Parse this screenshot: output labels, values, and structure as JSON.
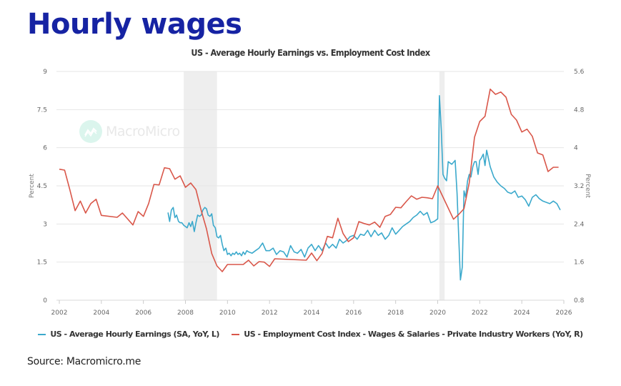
{
  "header": {
    "title": "Hourly wages"
  },
  "watermark": "MacroMicro",
  "source": "Source: Macromicro.me",
  "chart_data": {
    "type": "line",
    "title": "US - Average Hourly Earnings vs. Employment Cost Index",
    "xlabel": "",
    "ylabel_left": "Percent",
    "ylabel_right": "Percent",
    "xlim": [
      2002,
      2026
    ],
    "ylim_left": [
      0,
      9
    ],
    "ylim_right": [
      0.8,
      5.6
    ],
    "x_ticks": [
      "2002",
      "2004",
      "2006",
      "2008",
      "2010",
      "2012",
      "2014",
      "2016",
      "2018",
      "2020",
      "2022",
      "2024",
      "2026"
    ],
    "y_ticks_left": [
      "0",
      "1.5",
      "3",
      "4.5",
      "6",
      "7.5",
      "9"
    ],
    "y_ticks_right": [
      "0.8",
      "1.6",
      "2.4",
      "3.2",
      "4",
      "4.8",
      "5.6"
    ],
    "grid": true,
    "legend_position": "bottom",
    "recession_shading": [
      {
        "start": 2007.92,
        "end": 2009.5
      },
      {
        "start": 2020.08,
        "end": 2020.33
      }
    ],
    "series": [
      {
        "name": "US - Average Hourly Earnings (SA, YoY, L)",
        "axis": "left",
        "color": "#3ba9cc",
        "x": [
          2007.17,
          2007.25,
          2007.33,
          2007.42,
          2007.5,
          2007.58,
          2007.67,
          2007.75,
          2007.83,
          2007.92,
          2008.0,
          2008.08,
          2008.17,
          2008.25,
          2008.33,
          2008.42,
          2008.5,
          2008.58,
          2008.67,
          2008.75,
          2008.83,
          2008.92,
          2009.0,
          2009.08,
          2009.17,
          2009.25,
          2009.33,
          2009.42,
          2009.5,
          2009.58,
          2009.67,
          2009.75,
          2009.83,
          2009.92,
          2010.0,
          2010.08,
          2010.17,
          2010.25,
          2010.33,
          2010.42,
          2010.5,
          2010.58,
          2010.67,
          2010.75,
          2010.83,
          2010.92,
          2011.0,
          2011.17,
          2011.33,
          2011.5,
          2011.67,
          2011.83,
          2012.0,
          2012.17,
          2012.33,
          2012.5,
          2012.67,
          2012.83,
          2013.0,
          2013.17,
          2013.33,
          2013.5,
          2013.67,
          2013.83,
          2014.0,
          2014.17,
          2014.33,
          2014.5,
          2014.67,
          2014.83,
          2015.0,
          2015.17,
          2015.33,
          2015.5,
          2015.67,
          2015.83,
          2016.0,
          2016.17,
          2016.33,
          2016.5,
          2016.67,
          2016.83,
          2017.0,
          2017.17,
          2017.33,
          2017.5,
          2017.67,
          2017.83,
          2018.0,
          2018.17,
          2018.33,
          2018.5,
          2018.67,
          2018.83,
          2019.0,
          2019.17,
          2019.33,
          2019.5,
          2019.67,
          2019.83,
          2020.0,
          2020.08,
          2020.17,
          2020.25,
          2020.33,
          2020.42,
          2020.5,
          2020.67,
          2020.83,
          2020.92,
          2021.0,
          2021.08,
          2021.17,
          2021.25,
          2021.33,
          2021.42,
          2021.5,
          2021.58,
          2021.67,
          2021.75,
          2021.83,
          2021.92,
          2022.0,
          2022.08,
          2022.17,
          2022.25,
          2022.33,
          2022.42,
          2022.5,
          2022.67,
          2022.83,
          2023.0,
          2023.17,
          2023.33,
          2023.5,
          2023.67,
          2023.83,
          2024.0,
          2024.17,
          2024.33,
          2024.5,
          2024.67,
          2024.83,
          2025.0,
          2025.17,
          2025.33,
          2025.5,
          2025.67,
          2025.83
        ],
        "y": [
          3.45,
          3.1,
          3.55,
          3.65,
          3.25,
          3.35,
          3.1,
          3.05,
          3.05,
          2.95,
          2.9,
          2.85,
          3.05,
          2.9,
          3.1,
          2.7,
          3.05,
          3.35,
          3.3,
          3.35,
          3.55,
          3.65,
          3.6,
          3.35,
          3.3,
          3.4,
          2.95,
          2.85,
          2.5,
          2.45,
          2.55,
          2.2,
          1.95,
          2.05,
          1.8,
          1.85,
          1.75,
          1.85,
          1.8,
          1.9,
          1.8,
          1.85,
          1.75,
          1.9,
          1.8,
          1.95,
          1.9,
          1.85,
          1.95,
          2.05,
          2.25,
          1.95,
          1.95,
          2.05,
          1.8,
          1.95,
          1.9,
          1.7,
          2.15,
          1.9,
          1.85,
          2.0,
          1.7,
          2.05,
          2.2,
          1.95,
          2.15,
          1.95,
          2.25,
          2.05,
          2.2,
          2.05,
          2.4,
          2.25,
          2.35,
          2.5,
          2.55,
          2.4,
          2.6,
          2.55,
          2.75,
          2.5,
          2.75,
          2.55,
          2.65,
          2.4,
          2.55,
          2.85,
          2.6,
          2.75,
          2.9,
          3.0,
          3.1,
          3.25,
          3.35,
          3.5,
          3.35,
          3.45,
          3.05,
          3.1,
          3.2,
          8.05,
          6.7,
          4.95,
          4.8,
          4.7,
          5.45,
          5.35,
          5.5,
          4.2,
          2.5,
          0.8,
          1.3,
          4.3,
          4.05,
          4.7,
          4.95,
          4.85,
          5.25,
          5.45,
          5.45,
          4.95,
          5.5,
          5.6,
          5.75,
          5.3,
          5.9,
          5.55,
          5.25,
          4.85,
          4.65,
          4.5,
          4.4,
          4.25,
          4.2,
          4.3,
          4.05,
          4.1,
          3.95,
          3.7,
          4.05,
          4.15,
          4.0,
          3.9,
          3.85,
          3.8,
          3.9,
          3.8,
          3.55
        ]
      },
      {
        "name": "US - Employment Cost Index - Wages & Salaries - Private Industry Workers (YoY, R)",
        "axis": "right",
        "color": "#d9574a",
        "x": [
          2002.0,
          2002.25,
          2002.5,
          2002.75,
          2003.0,
          2003.25,
          2003.5,
          2003.75,
          2004.0,
          2004.75,
          2005.0,
          2005.5,
          2005.75,
          2006.0,
          2006.25,
          2006.5,
          2006.75,
          2007.0,
          2007.25,
          2007.5,
          2007.75,
          2008.0,
          2008.25,
          2008.5,
          2008.75,
          2009.0,
          2009.25,
          2009.5,
          2009.75,
          2010.0,
          2010.75,
          2011.0,
          2011.25,
          2011.5,
          2011.75,
          2012.0,
          2012.25,
          2013.75,
          2014.0,
          2014.25,
          2014.5,
          2014.75,
          2015.0,
          2015.25,
          2015.5,
          2015.75,
          2016.0,
          2016.25,
          2016.5,
          2016.75,
          2017.0,
          2017.25,
          2017.5,
          2017.75,
          2018.0,
          2018.25,
          2018.5,
          2018.75,
          2019.0,
          2019.25,
          2019.5,
          2019.75,
          2020.0,
          2020.75,
          2021.0,
          2021.25,
          2021.5,
          2021.75,
          2022.0,
          2022.25,
          2022.5,
          2022.75,
          2023.0,
          2023.25,
          2023.5,
          2023.75,
          2024.0,
          2024.25,
          2024.5,
          2024.75,
          2025.0,
          2025.25,
          2025.5,
          2025.75
        ],
        "y": [
          3.55,
          3.53,
          3.12,
          2.68,
          2.88,
          2.63,
          2.83,
          2.92,
          2.58,
          2.54,
          2.63,
          2.38,
          2.66,
          2.56,
          2.83,
          3.23,
          3.22,
          3.58,
          3.56,
          3.34,
          3.41,
          3.17,
          3.26,
          3.12,
          2.68,
          2.3,
          1.78,
          1.52,
          1.4,
          1.55,
          1.55,
          1.64,
          1.52,
          1.61,
          1.6,
          1.51,
          1.67,
          1.64,
          1.79,
          1.63,
          1.78,
          2.14,
          2.11,
          2.52,
          2.2,
          2.03,
          2.11,
          2.45,
          2.41,
          2.38,
          2.44,
          2.33,
          2.56,
          2.6,
          2.75,
          2.74,
          2.87,
          2.99,
          2.92,
          2.96,
          2.95,
          2.93,
          3.2,
          2.5,
          2.6,
          2.72,
          3.26,
          4.22,
          4.55,
          4.66,
          5.23,
          5.12,
          5.17,
          5.06,
          4.7,
          4.58,
          4.33,
          4.39,
          4.24,
          3.89,
          3.85,
          3.5,
          3.59,
          3.59
        ]
      }
    ]
  }
}
